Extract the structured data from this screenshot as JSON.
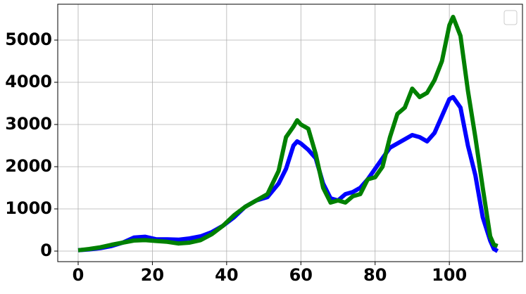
{
  "chart_data": {
    "type": "line",
    "x": [
      0,
      3,
      6,
      9,
      12,
      15,
      18,
      21,
      24,
      27,
      30,
      33,
      36,
      39,
      42,
      45,
      48,
      51,
      54,
      56,
      58,
      59,
      60,
      62,
      64,
      66,
      68,
      70,
      72,
      74,
      76,
      78,
      80,
      82,
      84,
      86,
      88,
      90,
      92,
      94,
      96,
      98,
      100,
      101,
      103,
      105,
      107,
      109,
      111,
      112,
      113
    ],
    "series": [
      {
        "color": "#0000ff",
        "values": [
          20,
          40,
          70,
          120,
          200,
          320,
          340,
          280,
          280,
          270,
          300,
          350,
          450,
          600,
          800,
          1050,
          1200,
          1280,
          1600,
          1950,
          2500,
          2600,
          2550,
          2400,
          2200,
          1600,
          1250,
          1200,
          1350,
          1400,
          1500,
          1700,
          1950,
          2200,
          2450,
          2550,
          2650,
          2750,
          2700,
          2600,
          2800,
          3200,
          3600,
          3650,
          3400,
          2500,
          1800,
          800,
          250,
          50,
          0
        ]
      },
      {
        "color": "#008000",
        "values": [
          20,
          50,
          90,
          150,
          200,
          250,
          260,
          240,
          220,
          180,
          200,
          260,
          400,
          600,
          850,
          1050,
          1200,
          1350,
          1900,
          2700,
          2950,
          3100,
          3000,
          2900,
          2300,
          1500,
          1150,
          1200,
          1150,
          1300,
          1350,
          1700,
          1750,
          2000,
          2700,
          3250,
          3400,
          3850,
          3650,
          3750,
          4050,
          4500,
          5350,
          5550,
          5100,
          3800,
          2700,
          1500,
          350,
          150,
          120
        ]
      }
    ],
    "xlim": [
      -5.5,
      119.7
    ],
    "xticks": [
      0,
      20,
      40,
      60,
      80,
      100
    ],
    "ylim": [
      -250,
      5850
    ],
    "yticks": [
      0,
      1000,
      2000,
      3000,
      4000,
      5000
    ],
    "grid": true
  }
}
